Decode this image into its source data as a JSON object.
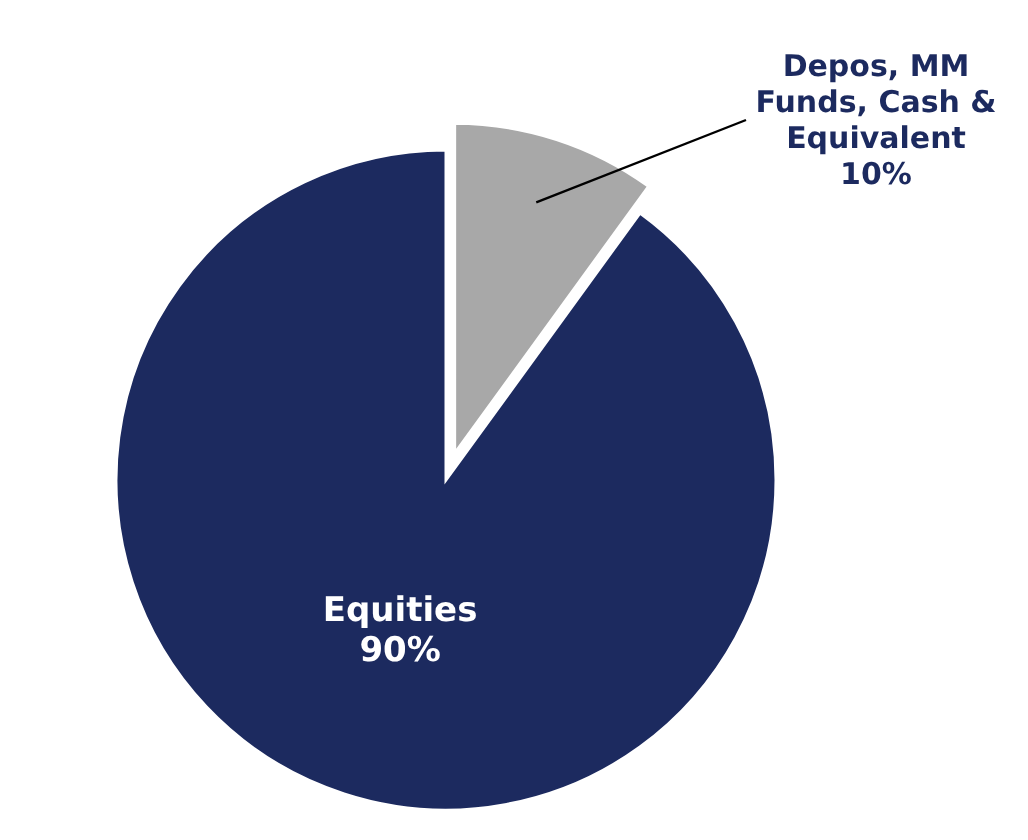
{
  "chart_data": {
    "type": "pie",
    "categories": [
      "Equities",
      "Depos, MM Funds, Cash & Equivalent"
    ],
    "values": [
      90,
      10
    ],
    "colors": [
      "#1c2a5f",
      "#a8a8a8"
    ],
    "value_labels": [
      "90%",
      "10%"
    ]
  }
}
